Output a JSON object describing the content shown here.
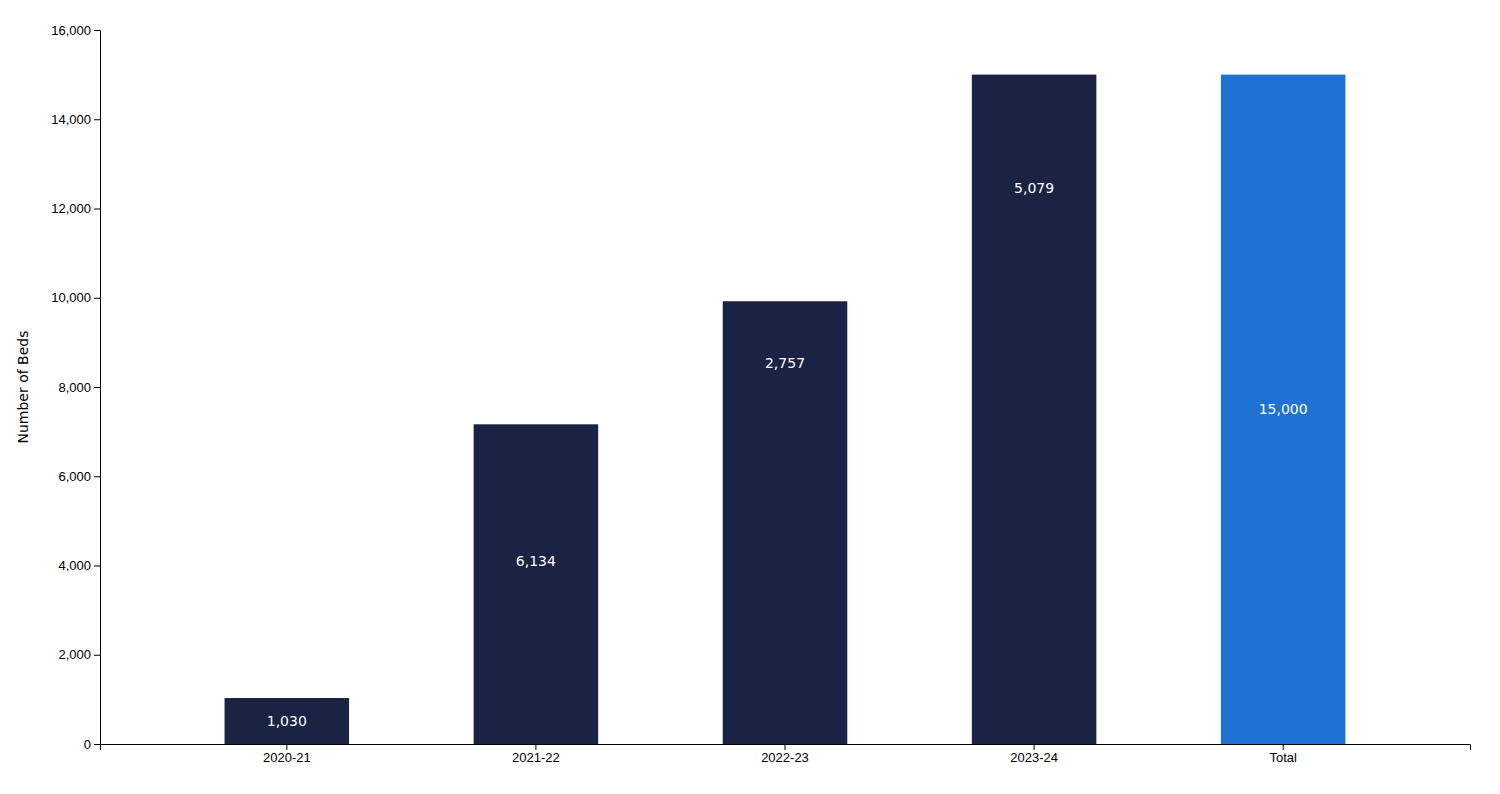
{
  "chart_data": {
    "type": "bar",
    "ylabel": "Number of Beds",
    "categories": [
      "2020-21",
      "2021-22",
      "2022-23",
      "2023-24",
      "Total"
    ],
    "values": [
      1030,
      7164,
      9921,
      15000,
      15000
    ],
    "increments": [
      1030,
      6134,
      2757,
      5079,
      15000
    ],
    "increment_labels": [
      "1,030",
      "6,134",
      "2,757",
      "5,079",
      "15,000"
    ],
    "colors": [
      "#1a2344",
      "#1a2344",
      "#1a2344",
      "#1a2344",
      "#1e72d4"
    ],
    "label_color": "#ffffff",
    "ylim": [
      0,
      16000
    ],
    "yticks": [
      0,
      {
        "value": 2000,
        "label": "2,000"
      },
      {
        "value": 4000,
        "label": "4,000"
      },
      {
        "value": 6000,
        "label": "6,000"
      },
      {
        "value": 8000,
        "label": "8,000"
      },
      {
        "value": 10000,
        "label": "10,000"
      },
      {
        "value": 12000,
        "label": "12,000"
      },
      {
        "value": 14000,
        "label": "14,000"
      },
      {
        "value": 16000,
        "label": "16,000"
      }
    ],
    "grid": false
  }
}
